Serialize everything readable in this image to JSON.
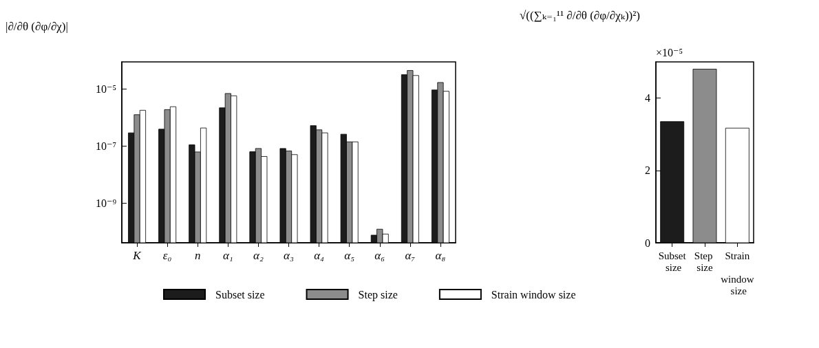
{
  "chart_data": [
    {
      "type": "bar",
      "title": "|∂/∂θ (∂φ/∂χ)|",
      "categories": [
        "K",
        "ε₀",
        "n",
        "α₁",
        "α₂",
        "α₃",
        "α₄",
        "α₅",
        "α₆",
        "α₇",
        "α₈"
      ],
      "series": [
        {
          "name": "Subset size",
          "color": "#1c1c1c",
          "values": [
            2.9e-07,
            3.9e-07,
            1.1e-07,
            2.2e-06,
            6.3e-08,
            8.2e-08,
            5.2e-07,
            2.6e-07,
            7.4e-11,
            3.2e-05,
            9.3e-06
          ]
        },
        {
          "name": "Step size",
          "color": "#8c8c8c",
          "values": [
            1.26e-06,
            1.9e-06,
            6.2e-08,
            7e-06,
            8.2e-08,
            6.7e-08,
            3.7e-07,
            1.4e-07,
            1.2e-10,
            4.5e-05,
            1.7e-05
          ]
        },
        {
          "name": "Strain window size",
          "color": "#ffffff",
          "values": [
            1.8e-06,
            2.4e-06,
            4.3e-07,
            5.8e-06,
            4.3e-08,
            5e-08,
            2.9e-07,
            1.4e-07,
            8.1e-11,
            3e-05,
            8.4e-06
          ]
        }
      ],
      "log": "y",
      "ylim": [
        4e-11,
        9e-05
      ],
      "yticks": [
        {
          "value": 1e-09,
          "label": "10⁻⁹"
        },
        {
          "value": 1e-07,
          "label": "10⁻⁷"
        },
        {
          "value": 1e-05,
          "label": "10⁻⁵"
        }
      ],
      "grid": false,
      "legend": "bottom"
    },
    {
      "type": "bar",
      "title": "√((∑ₖ₌₁¹¹ ∂/∂θ (∂φ/∂χₖ))²)",
      "categories": [
        "Subset size",
        "Step size",
        "Strain window size"
      ],
      "values": [
        3.35,
        4.8,
        3.17
      ],
      "colors": [
        "#1c1c1c",
        "#8c8c8c",
        "#ffffff"
      ],
      "ylim": [
        0,
        5
      ],
      "yticks": [
        0,
        2,
        4
      ],
      "grid": false,
      "legend": false,
      "annotations": [
        "×10⁻⁵"
      ]
    }
  ]
}
